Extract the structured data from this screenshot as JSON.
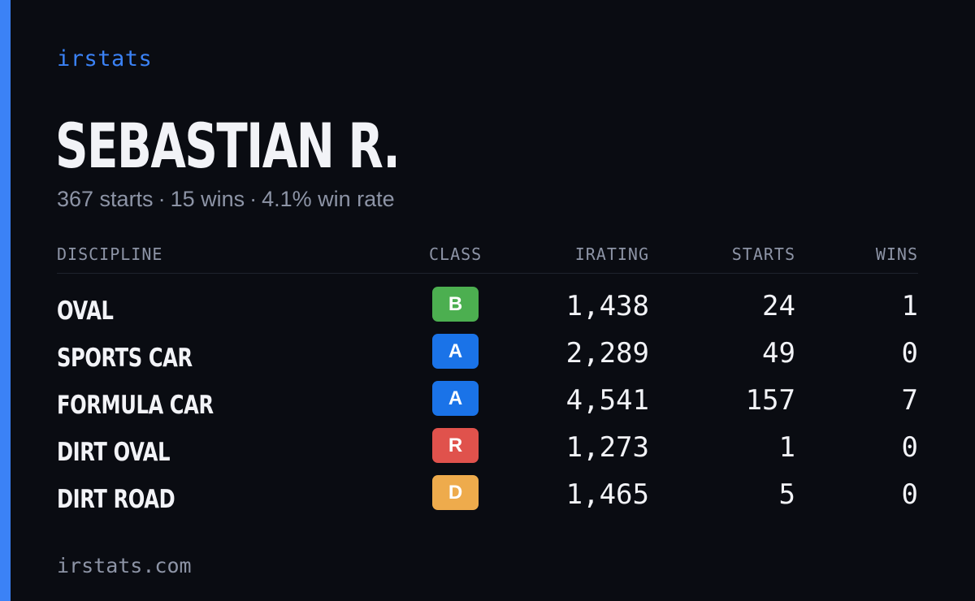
{
  "theme": {
    "background": "#0a0c12",
    "accent": "#3b82f6",
    "text": "#f2f3f7",
    "muted": "#8d94a6"
  },
  "brand": {
    "name": "irstats"
  },
  "driver": {
    "name": "SEBASTIAN R.",
    "summary": {
      "starts": "367 starts",
      "wins": "15 wins",
      "win_rate": "4.1% win rate",
      "separator": "·"
    }
  },
  "table": {
    "headers": {
      "discipline": "DISCIPLINE",
      "class": "CLASS",
      "irating": "IRATING",
      "starts": "STARTS",
      "wins": "WINS"
    },
    "rows": [
      {
        "discipline": "OVAL",
        "class": "B",
        "class_color": "#4caf50",
        "irating": "1,438",
        "starts": "24",
        "wins": "1"
      },
      {
        "discipline": "SPORTS CAR",
        "class": "A",
        "class_color": "#1a73e8",
        "irating": "2,289",
        "starts": "49",
        "wins": "0"
      },
      {
        "discipline": "FORMULA CAR",
        "class": "A",
        "class_color": "#1a73e8",
        "irating": "4,541",
        "starts": "157",
        "wins": "7"
      },
      {
        "discipline": "DIRT OVAL",
        "class": "R",
        "class_color": "#e0524c",
        "irating": "1,273",
        "starts": "1",
        "wins": "0"
      },
      {
        "discipline": "DIRT ROAD",
        "class": "D",
        "class_color": "#eeab4c",
        "irating": "1,465",
        "starts": "5",
        "wins": "0"
      }
    ]
  },
  "footer": {
    "url": "irstats.com"
  }
}
